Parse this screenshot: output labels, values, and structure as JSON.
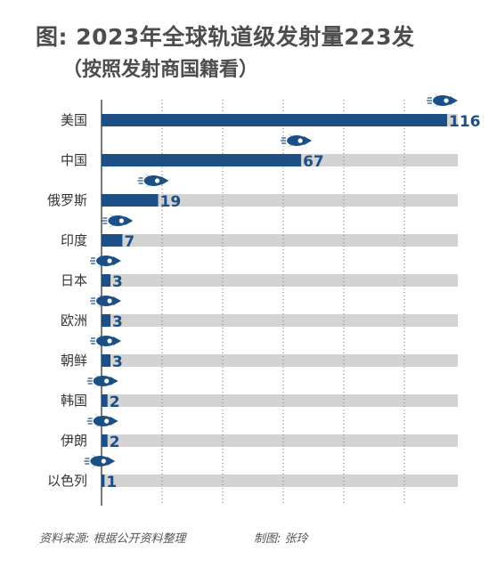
{
  "title": "图: 2023年全球轨道级发射量223发",
  "subtitle": "（按照发射商国籍看）",
  "footer": {
    "source": "资料来源: 根据公开资料整理",
    "maker": "制图: 张玲"
  },
  "colors": {
    "bar": "#1c4f86",
    "track": "#d3d3d3",
    "label": "#1c4f86",
    "category": "#333333",
    "rocket_icon": "rocket-icon"
  },
  "chart_data": {
    "type": "bar",
    "orientation": "horizontal",
    "categories": [
      "美国",
      "中国",
      "俄罗斯",
      "印度",
      "日本",
      "欧洲",
      "朝鲜",
      "韩国",
      "伊朗",
      "以色列"
    ],
    "values": [
      116,
      67,
      19,
      7,
      3,
      3,
      3,
      2,
      2,
      1
    ],
    "title": "图: 2023年全球轨道级发射量223发",
    "subtitle": "（按照发射商国籍看）",
    "xlim": [
      0,
      116
    ],
    "grid": true,
    "legend": "none",
    "data_labels": true
  }
}
